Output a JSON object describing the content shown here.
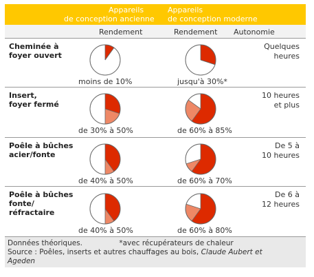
{
  "header": {
    "col_ancien_line1": "Appareils",
    "col_ancien_line2": "de conception ancienne",
    "col_moderne_line1": "Appareils",
    "col_moderne_line2": "de conception moderne"
  },
  "subheader": {
    "rendement_ancien": "Rendement",
    "rendement_moderne": "Rendement",
    "autonomie": "Autonomie"
  },
  "rows": [
    {
      "label1": "Cheminée à",
      "label2": "foyer ouvert",
      "label3": "",
      "ancien_caption": "moins de 10%",
      "moderne_caption": "jusqu'à 30%*",
      "autonomie1": "Quelques",
      "autonomie2": "heures"
    },
    {
      "label1": "Insert,",
      "label2": "foyer fermé",
      "label3": "",
      "ancien_caption": "de 30% à 50%",
      "moderne_caption": "de 60% à 85%",
      "autonomie1": "10 heures",
      "autonomie2": "et plus"
    },
    {
      "label1": "Poêle à bûches",
      "label2": "acier/fonte",
      "label3": "",
      "ancien_caption": "de 40% à 50%",
      "moderne_caption": "de 60% à 70%",
      "autonomie1": "De 5 à",
      "autonomie2": "10 heures"
    },
    {
      "label1": "Poêle à bûches",
      "label2": "fonte/",
      "label3": "réfractaire",
      "ancien_caption": "de 40% à 50%",
      "moderne_caption": "de 60% à 80%",
      "autonomie1": "De 6 à",
      "autonomie2": "12 heures"
    }
  ],
  "footer": {
    "note": "Données théoriques.",
    "asterisk": "*avec récupérateurs de chaleur",
    "source_prefix": "Source : Poêles, inserts et autres chauffages au bois,",
    "source_authors": "Claude Aubert et",
    "source_line2": "Ageden"
  },
  "chart_data": {
    "type": "pie",
    "description_units": "percent",
    "colors": {
      "min": "#dd2a00",
      "range": "#ee8866",
      "rest": "#ffffff",
      "stroke": "#666666"
    },
    "series": [
      {
        "name": "Appareils de conception ancienne",
        "values": [
          {
            "category": "Cheminée à foyer ouvert",
            "min": 10,
            "max": 10
          },
          {
            "category": "Insert, foyer fermé",
            "min": 30,
            "max": 50
          },
          {
            "category": "Poêle à bûches acier/fonte",
            "min": 40,
            "max": 50
          },
          {
            "category": "Poêle à bûches fonte/réfractaire",
            "min": 40,
            "max": 50
          }
        ]
      },
      {
        "name": "Appareils de conception moderne",
        "values": [
          {
            "category": "Cheminée à foyer ouvert",
            "min": 30,
            "max": 30
          },
          {
            "category": "Insert, foyer fermé",
            "min": 60,
            "max": 85
          },
          {
            "category": "Poêle à bûches acier/fonte",
            "min": 60,
            "max": 70
          },
          {
            "category": "Poêle à bûches fonte/réfractaire",
            "min": 60,
            "max": 80
          }
        ]
      }
    ]
  }
}
